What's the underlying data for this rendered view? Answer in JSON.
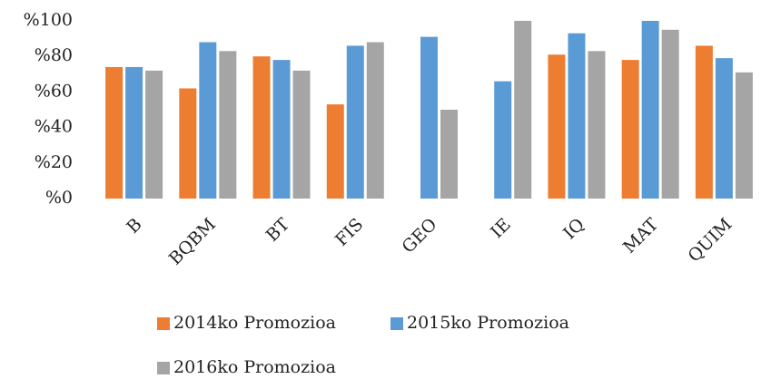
{
  "chart_data": {
    "type": "bar",
    "categories": [
      "B",
      "BQBM",
      "BT",
      "FIS",
      "GEO",
      "IE",
      "IQ",
      "MAT",
      "QUIM"
    ],
    "series": [
      {
        "name": "2014ko Promozioa",
        "color": "#ed7d31",
        "values": [
          74,
          62,
          80,
          53,
          null,
          null,
          81,
          78,
          86
        ]
      },
      {
        "name": "2015ko Promozioa",
        "color": "#5b9bd5",
        "values": [
          74,
          88,
          78,
          86,
          91,
          66,
          93,
          100,
          79
        ]
      },
      {
        "name": "2016ko Promozioa",
        "color": "#a5a5a5",
        "values": [
          72,
          83,
          72,
          88,
          50,
          100,
          83,
          95,
          71
        ]
      }
    ],
    "ylim": [
      0,
      100
    ],
    "yticks": [
      {
        "value": 0,
        "label": "%0"
      },
      {
        "value": 20,
        "label": "%20"
      },
      {
        "value": 40,
        "label": "%40"
      },
      {
        "value": 60,
        "label": "%60"
      },
      {
        "value": 80,
        "label": "%80"
      },
      {
        "value": 100,
        "label": "%100"
      }
    ],
    "grid": false,
    "legend": "bottom"
  }
}
